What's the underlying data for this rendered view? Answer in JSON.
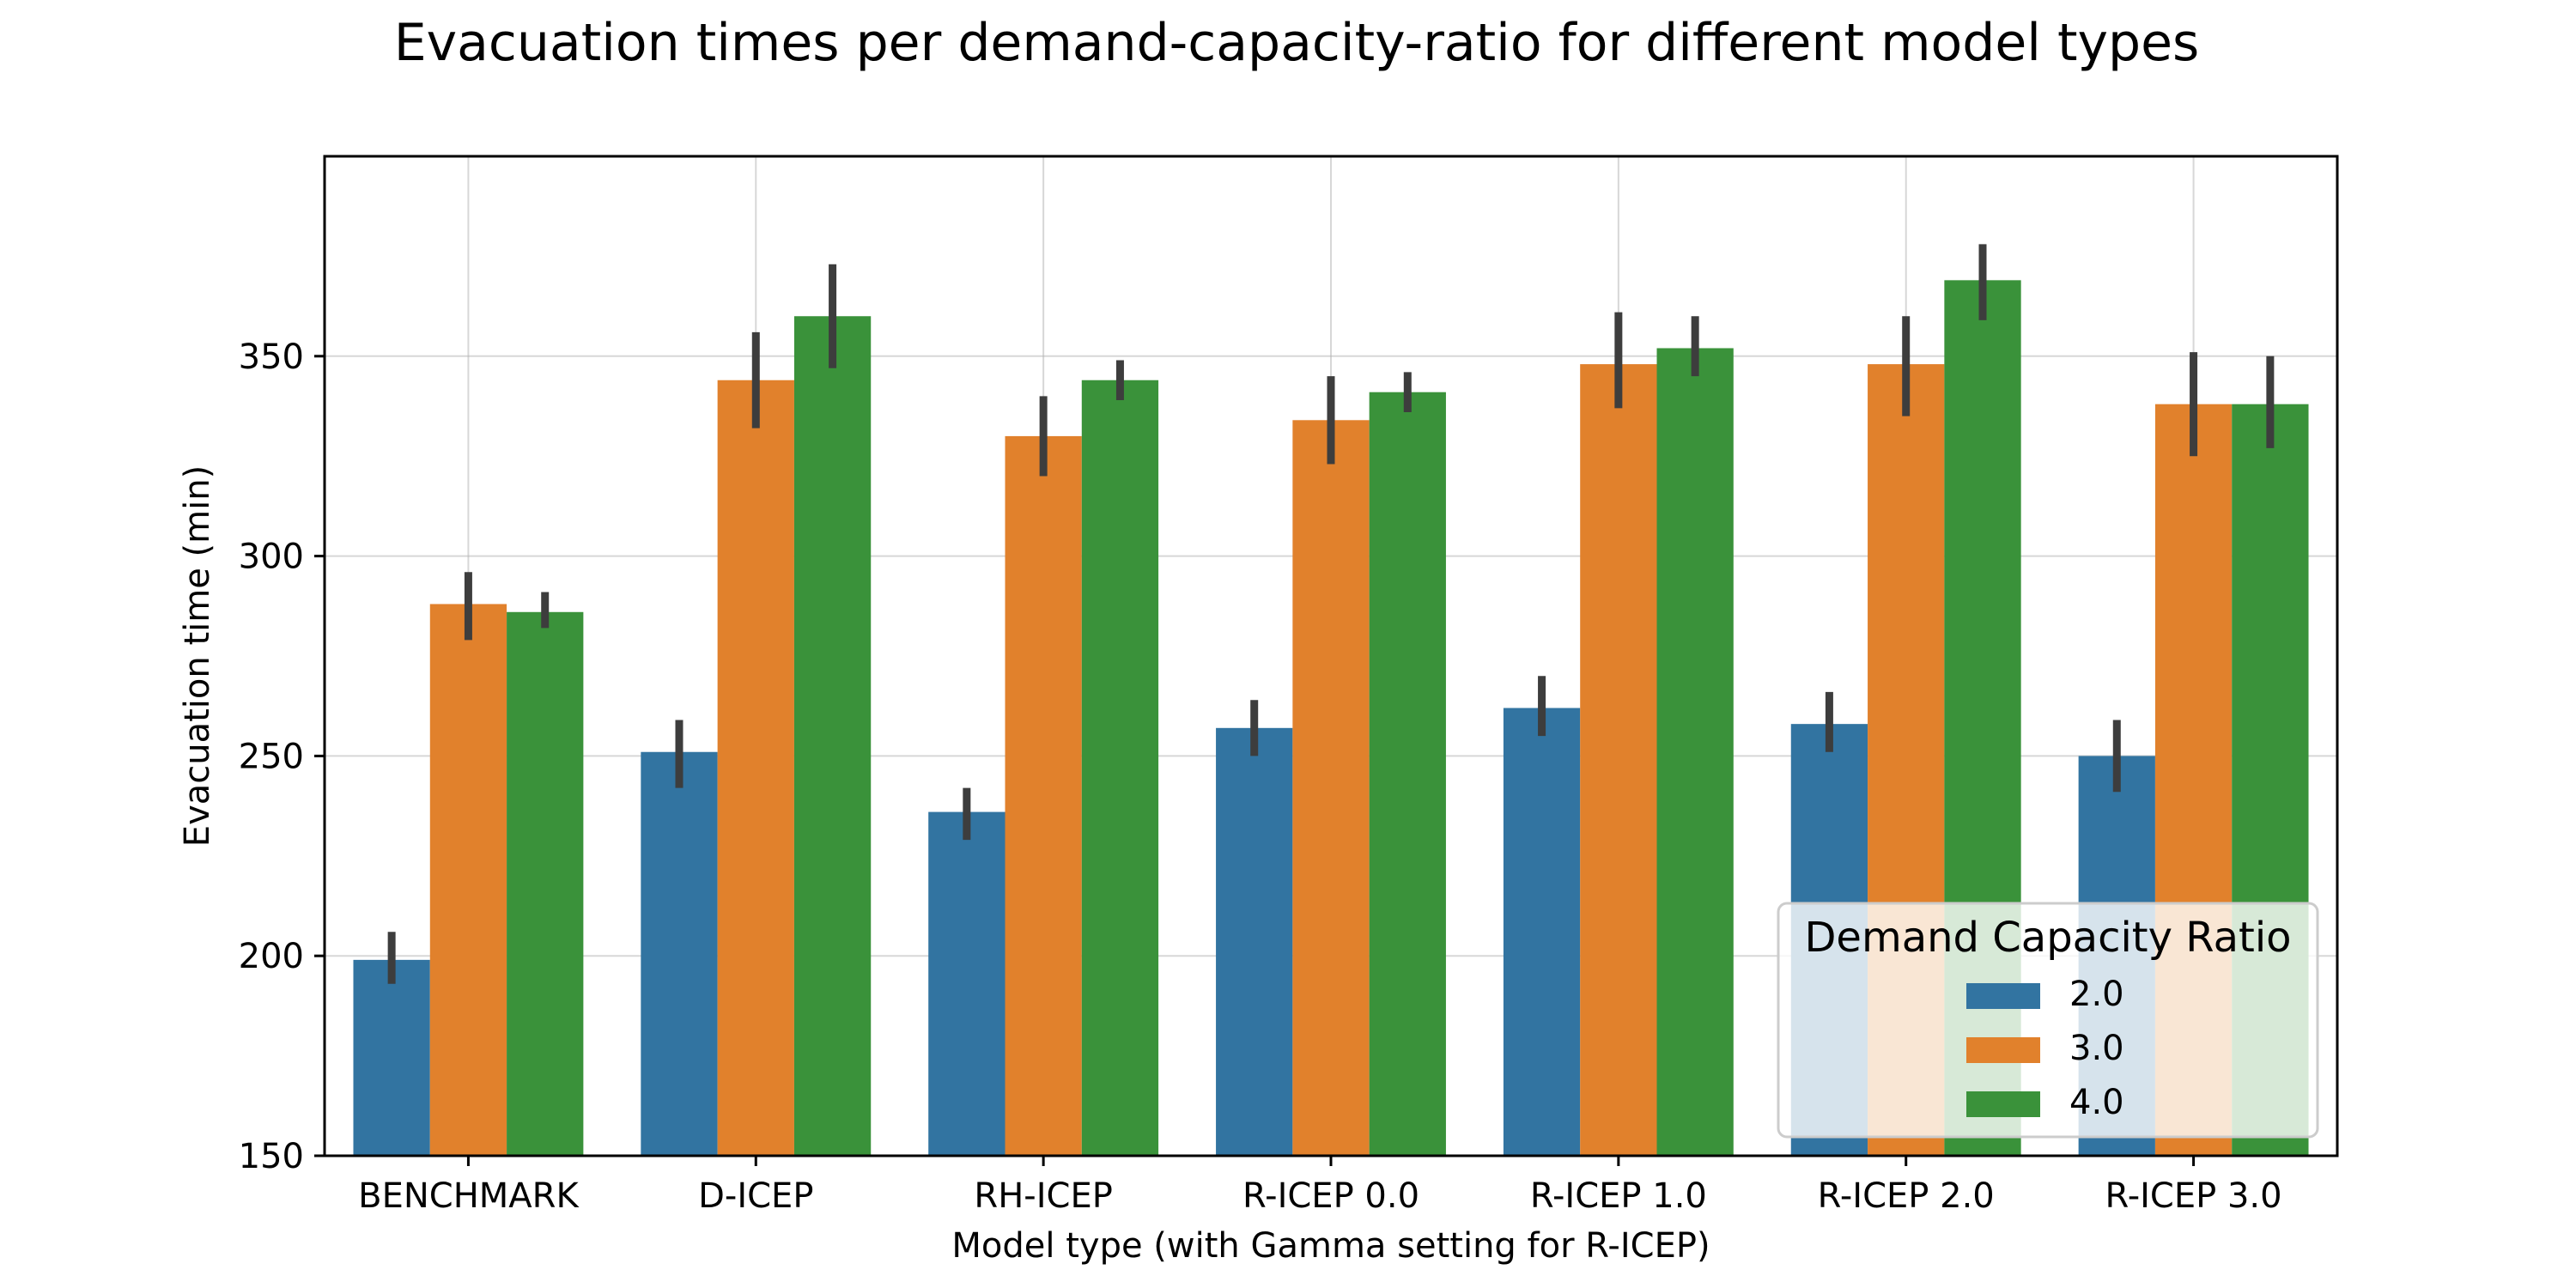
{
  "chart_data": {
    "type": "bar",
    "title": "Evacuation times per demand-capacity-ratio for different model types",
    "xlabel": "Model type (with Gamma setting for R-ICEP)",
    "ylabel": "Evacuation time (min)",
    "ylim": [
      150,
      400
    ],
    "yticks": [
      150,
      200,
      250,
      300,
      350
    ],
    "grid": true,
    "categories": [
      "BENCHMARK",
      "D-ICEP",
      "RH-ICEP",
      "R-ICEP 0.0",
      "R-ICEP 1.0",
      "R-ICEP 2.0",
      "R-ICEP 3.0"
    ],
    "legend": {
      "title": "Demand Capacity Ratio",
      "placement": "lower-right"
    },
    "series": [
      {
        "name": "2.0",
        "color": "#3274a1",
        "values": [
          199,
          251,
          236,
          257,
          262,
          258,
          250
        ],
        "ci_low": [
          193,
          242,
          229,
          250,
          255,
          251,
          241
        ],
        "ci_high": [
          206,
          259,
          242,
          264,
          270,
          266,
          259
        ]
      },
      {
        "name": "3.0",
        "color": "#e1812c",
        "values": [
          288,
          344,
          330,
          334,
          348,
          348,
          338
        ],
        "ci_low": [
          279,
          332,
          320,
          323,
          337,
          335,
          325
        ],
        "ci_high": [
          296,
          356,
          340,
          345,
          361,
          360,
          351
        ]
      },
      {
        "name": "4.0",
        "color": "#3a923a",
        "values": [
          286,
          360,
          344,
          341,
          352,
          369,
          338
        ],
        "ci_low": [
          282,
          347,
          339,
          336,
          345,
          359,
          327
        ],
        "ci_high": [
          291,
          373,
          349,
          346,
          360,
          378,
          350
        ]
      }
    ]
  }
}
